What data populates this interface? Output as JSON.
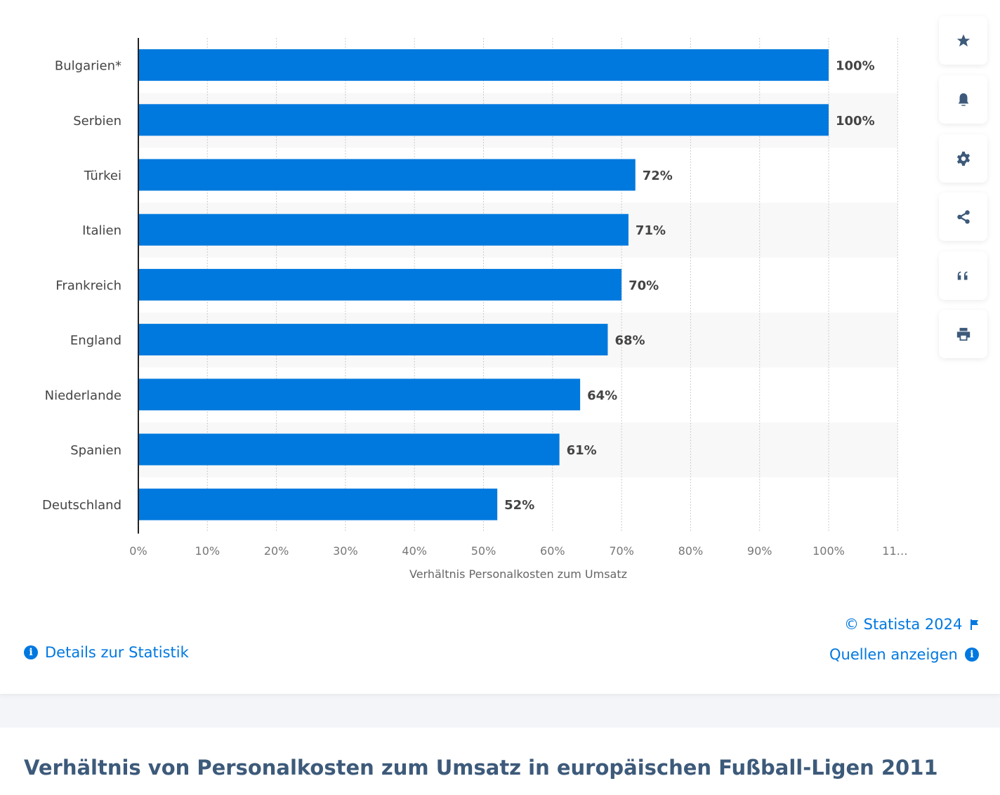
{
  "chart_data": {
    "type": "bar",
    "orientation": "horizontal",
    "categories": [
      "Bulgarien*",
      "Serbien",
      "Türkei",
      "Italien",
      "Frankreich",
      "England",
      "Niederlande",
      "Spanien",
      "Deutschland"
    ],
    "values": [
      100,
      100,
      72,
      71,
      70,
      68,
      64,
      61,
      52
    ],
    "data_labels": [
      "100%",
      "100%",
      "72%",
      "71%",
      "70%",
      "68%",
      "64%",
      "61%",
      "52%"
    ],
    "xlabel": "Verhältnis Personalkosten zum Umsatz",
    "xlim": [
      0,
      110
    ],
    "ticks": [
      "0%",
      "10%",
      "20%",
      "30%",
      "40%",
      "50%",
      "60%",
      "70%",
      "80%",
      "90%",
      "100%",
      "11…"
    ],
    "grid": true,
    "bar_color": "#0079de",
    "stripe_color": "#f8f8f8"
  },
  "sidebar": {
    "icons": [
      "star-icon",
      "bell-icon",
      "gear-icon",
      "share-icon",
      "quote-icon",
      "print-icon"
    ]
  },
  "footer": {
    "copyright": "© Statista 2024",
    "sources": "Quellen anzeigen",
    "details": "Details zur Statistik"
  },
  "title": "Verhältnis von Personalkosten zum Umsatz in europäischen Fußball-Ligen 2011",
  "colors": {
    "link": "#0078e0",
    "icon": "#3d5a7a"
  }
}
